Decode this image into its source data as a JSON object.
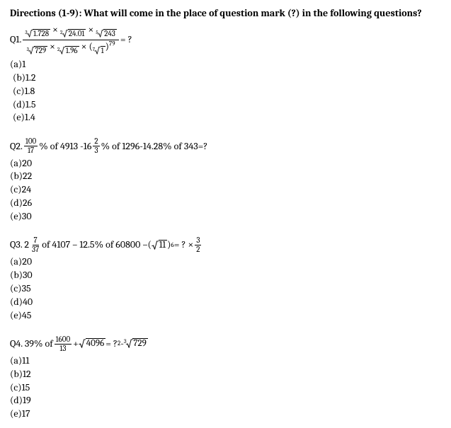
{
  "directions": "Directions (1-9): What will come in the place of question mark (?) in the following questions?",
  "q1": {
    "label": "Q1.",
    "num_r1_deg": "3",
    "num_r1": "1.728",
    "num_r2_deg": "2",
    "num_r2": "24.01",
    "num_r3_deg": "5",
    "num_r3": "243",
    "den_r1_deg": "3",
    "den_r1": "729",
    "den_r2_deg": "2",
    "den_r2": "1.96",
    "den_r3_deg": "7",
    "den_r3": "1",
    "exp": "79",
    "tail": " = ?",
    "options": [
      "(a)1",
      "(b)1.2",
      "(c)1.8",
      "(d)1.5",
      "(e)1.4"
    ]
  },
  "q2": {
    "label": "Q2. ",
    "f1n": "100",
    "f1d": "17",
    "t1": "% of 4913 -16",
    "f2n": "2",
    "f2d": "3",
    "t2": "% of 1296-14.28% of 343=?",
    "options": [
      "(a)20",
      "(b)22",
      "(c)24",
      "(d)26",
      "(e)30"
    ]
  },
  "q3": {
    "label": "Q3. 2",
    "f1n": "7",
    "f1d": "37",
    "t1": " of 4107 – 12.5% of 60800 – ",
    "rad": "11",
    "exp": "6",
    "t2": " = ? ×",
    "f2n": "3",
    "f2d": "2",
    "options": [
      "(a)20",
      "(b)30",
      "(c)35",
      "(d)40",
      "(e)45"
    ]
  },
  "q4": {
    "label": "Q4. 39% of ",
    "f1n": "1600",
    "f1d": "13",
    "t1": " + ",
    "r1": "4096",
    "t2": " = ?",
    "sq": "2",
    "t3": " - ",
    "r2deg": "3",
    "r2": "729",
    "options": [
      "(a)11",
      "(b)12",
      "(c)15",
      "(d)19",
      "(e)17"
    ]
  }
}
